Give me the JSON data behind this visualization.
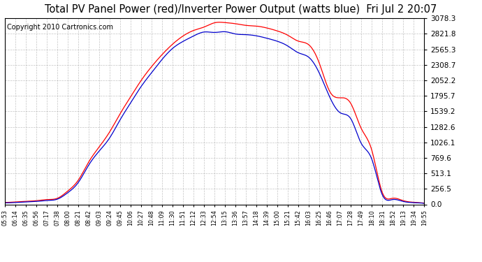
{
  "title": "Total PV Panel Power (red)/Inverter Power Output (watts blue)  Fri Jul 2 20:07",
  "copyright": "Copyright 2010 Cartronics.com",
  "x_labels": [
    "05:53",
    "06:14",
    "06:35",
    "06:56",
    "07:17",
    "07:38",
    "08:00",
    "08:21",
    "08:42",
    "09:03",
    "09:24",
    "09:45",
    "10:06",
    "10:27",
    "10:48",
    "11:09",
    "11:30",
    "11:51",
    "12:12",
    "12:33",
    "12:54",
    "13:15",
    "13:36",
    "13:57",
    "14:18",
    "14:39",
    "15:00",
    "15:21",
    "15:42",
    "16:03",
    "16:25",
    "16:46",
    "17:07",
    "17:28",
    "17:49",
    "18:10",
    "18:31",
    "18:52",
    "19:13",
    "19:34",
    "19:55"
  ],
  "y_ticks": [
    0.0,
    256.5,
    513.1,
    769.6,
    1026.1,
    1282.6,
    1539.2,
    1795.7,
    2052.2,
    2308.7,
    2565.3,
    2821.8,
    3078.3
  ],
  "y_max": 3078.3,
  "background_color": "#ffffff",
  "grid_color": "#aaaaaa",
  "red_color": "#ff0000",
  "blue_color": "#0000cc",
  "title_fontsize": 10.5,
  "copyright_fontsize": 7,
  "pv_red": [
    30,
    40,
    50,
    60,
    80,
    100,
    220,
    400,
    700,
    950,
    1200,
    1500,
    1780,
    2050,
    2280,
    2480,
    2650,
    2780,
    2880,
    2940,
    2980,
    3000,
    2990,
    2970,
    2950,
    2920,
    2870,
    2800,
    2700,
    2550,
    2350,
    1900,
    1750,
    1650,
    1200,
    900,
    200,
    100,
    60,
    35,
    20
  ],
  "inv_blue": [
    25,
    30,
    40,
    50,
    65,
    85,
    190,
    360,
    650,
    880,
    1100,
    1400,
    1680,
    1950,
    2180,
    2400,
    2580,
    2720,
    2800,
    2820,
    2830,
    2840,
    2820,
    2810,
    2790,
    2750,
    2700,
    2620,
    2510,
    2380,
    2200,
    1750,
    1600,
    1450,
    1000,
    750,
    160,
    80,
    50,
    28,
    15
  ]
}
